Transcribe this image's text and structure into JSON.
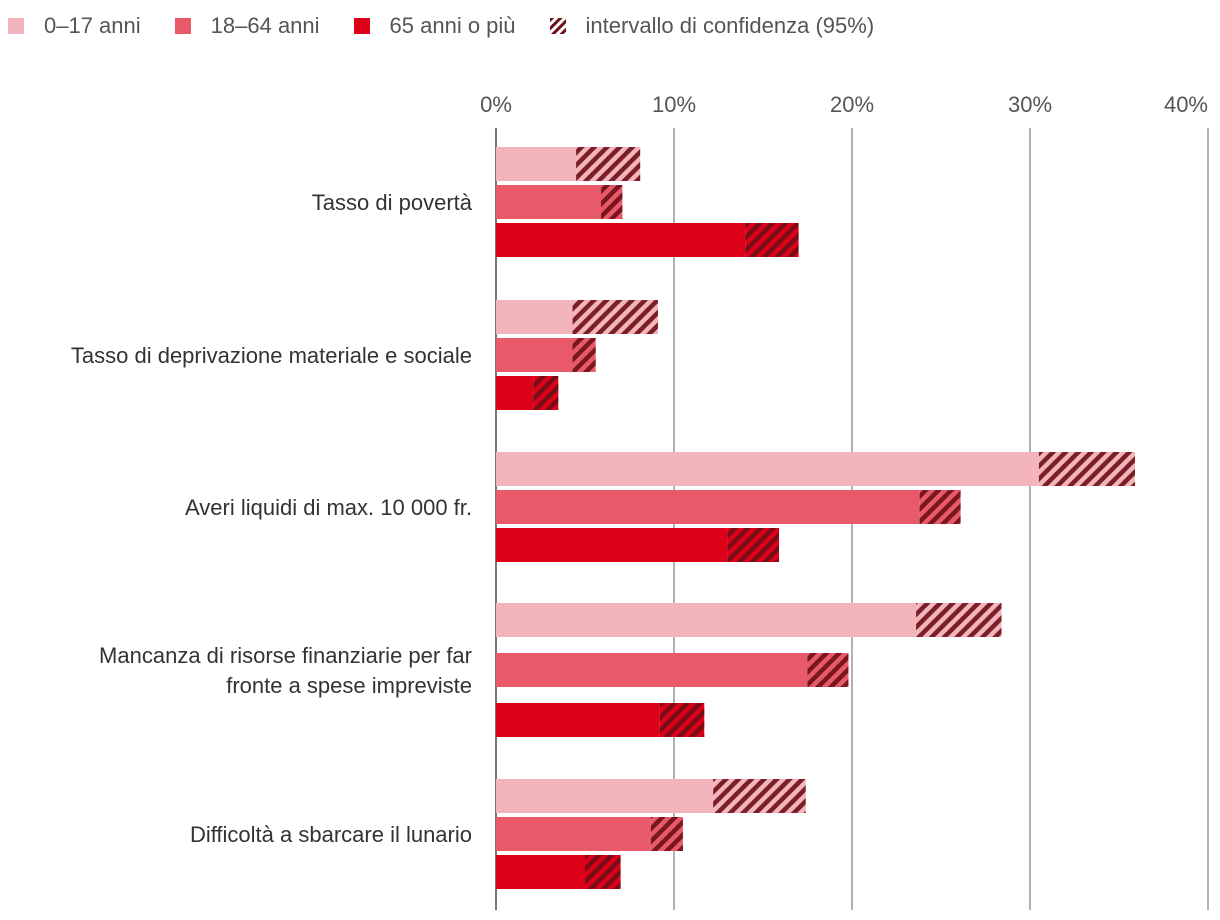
{
  "chart_data": {
    "type": "bar",
    "orientation": "horizontal",
    "categories": [
      [
        "Tasso di povertà"
      ],
      [
        "Tasso di deprivazione materiale e sociale"
      ],
      [
        "Averi liquidi di max. 10 000 fr."
      ],
      [
        "Mancanza di risorse finanziarie per far",
        "fronte a spese impreviste"
      ],
      [
        "Difficoltà a sbarcare il lunario"
      ]
    ],
    "series": [
      {
        "name": "0–17 anni",
        "color": "#f4b4bb",
        "values": [
          6.3,
          6.7,
          33.5,
          26.0,
          14.8
        ],
        "ci_low": [
          4.5,
          4.3,
          30.5,
          23.6,
          12.2
        ],
        "ci_high": [
          8.1,
          9.1,
          35.9,
          28.4,
          17.4
        ]
      },
      {
        "name": "18–64 anni",
        "color": "#e85a69",
        "values": [
          6.5,
          5.0,
          24.9,
          18.7,
          9.5
        ],
        "ci_low": [
          5.9,
          4.3,
          23.8,
          17.5,
          8.7
        ],
        "ci_high": [
          7.1,
          5.6,
          26.1,
          19.8,
          10.5
        ]
      },
      {
        "name": "65 anni o più",
        "color": "#dd0019",
        "values": [
          15.5,
          2.8,
          14.5,
          10.5,
          6.2
        ],
        "ci_low": [
          14.0,
          2.1,
          13.0,
          9.2,
          5.0
        ],
        "ci_high": [
          17.0,
          3.5,
          15.9,
          11.7,
          7.0
        ]
      }
    ],
    "ci_legend": "intervallo di confidenza (95%)",
    "ci_color": "#6e0e17",
    "x_ticks": [
      "0%",
      "10%",
      "20%",
      "30%",
      "40%"
    ],
    "x_tick_values": [
      0,
      10,
      20,
      30,
      40
    ],
    "xlim": [
      0,
      40
    ],
    "grid": true,
    "legend_position": "top-left",
    "title": "",
    "xlabel": "",
    "ylabel": ""
  }
}
